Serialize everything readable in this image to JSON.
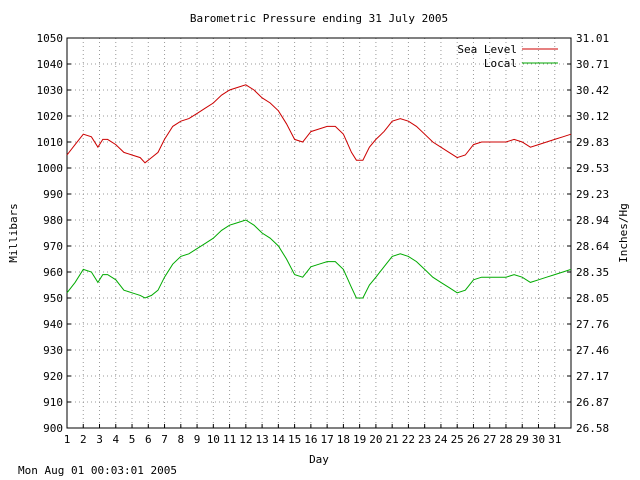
{
  "chart_data": {
    "type": "line",
    "title": "Barometric Pressure ending 31 July 2005",
    "xlabel": "Day",
    "ylabel": "Millibars",
    "ylabel_right": "Inches/Hg",
    "xlim": [
      1,
      32
    ],
    "ylim": [
      900,
      1050
    ],
    "grid": true,
    "legend_position": "top-right",
    "x_ticks": [
      "1",
      "2",
      "3",
      "4",
      "5",
      "6",
      "7",
      "8",
      "9",
      "10",
      "11",
      "12",
      "13",
      "14",
      "15",
      "16",
      "17",
      "18",
      "19",
      "20",
      "21",
      "22",
      "23",
      "24",
      "25",
      "26",
      "27",
      "28",
      "29",
      "30",
      "31"
    ],
    "y_ticks": [
      "900",
      "910",
      "920",
      "930",
      "940",
      "950",
      "960",
      "970",
      "980",
      "990",
      "1000",
      "1010",
      "1020",
      "1030",
      "1040",
      "1050"
    ],
    "y_ticks_right": [
      "26.58",
      "26.87",
      "27.17",
      "27.46",
      "27.76",
      "28.05",
      "28.35",
      "28.64",
      "28.94",
      "29.23",
      "29.53",
      "29.83",
      "30.12",
      "30.42",
      "30.71",
      "31.01"
    ],
    "series": [
      {
        "name": "Sea Level",
        "color": "#cc0000",
        "x": [
          1.0,
          1.5,
          2.0,
          2.5,
          2.9,
          3.2,
          3.5,
          4.0,
          4.5,
          5.0,
          5.5,
          5.8,
          6.2,
          6.6,
          7.0,
          7.5,
          8.0,
          8.5,
          9.0,
          9.5,
          10.0,
          10.5,
          11.0,
          11.5,
          12.0,
          12.5,
          13.0,
          13.5,
          14.0,
          14.5,
          15.0,
          15.5,
          16.0,
          16.5,
          17.0,
          17.5,
          18.0,
          18.5,
          18.8,
          19.2,
          19.6,
          20.0,
          20.5,
          21.0,
          21.5,
          22.0,
          22.5,
          23.0,
          23.5,
          24.0,
          24.5,
          25.0,
          25.5,
          26.0,
          26.5,
          27.0,
          27.5,
          28.0,
          28.5,
          29.0,
          29.5,
          30.0,
          30.5,
          31.0,
          31.5,
          32.0
        ],
        "values": [
          1005,
          1009,
          1013,
          1012,
          1008,
          1011,
          1011,
          1009,
          1006,
          1005,
          1004,
          1002,
          1004,
          1006,
          1011,
          1016,
          1018,
          1019,
          1021,
          1023,
          1025,
          1028,
          1030,
          1031,
          1032,
          1030,
          1027,
          1025,
          1022,
          1017,
          1011,
          1010,
          1014,
          1015,
          1016,
          1016,
          1013,
          1006,
          1003,
          1003,
          1008,
          1011,
          1014,
          1018,
          1019,
          1018,
          1016,
          1013,
          1010,
          1008,
          1006,
          1004,
          1005,
          1009,
          1010,
          1010,
          1010,
          1010,
          1011,
          1010,
          1008,
          1009,
          1010,
          1011,
          1012,
          1013
        ]
      },
      {
        "name": "Local",
        "color": "#00aa00",
        "x": [
          1.0,
          1.5,
          2.0,
          2.5,
          2.9,
          3.2,
          3.5,
          4.0,
          4.5,
          5.0,
          5.5,
          5.8,
          6.2,
          6.6,
          7.0,
          7.5,
          8.0,
          8.5,
          9.0,
          9.5,
          10.0,
          10.5,
          11.0,
          11.5,
          12.0,
          12.5,
          13.0,
          13.5,
          14.0,
          14.5,
          15.0,
          15.5,
          16.0,
          16.5,
          17.0,
          17.5,
          18.0,
          18.5,
          18.8,
          19.2,
          19.6,
          20.0,
          20.5,
          21.0,
          21.5,
          22.0,
          22.5,
          23.0,
          23.5,
          24.0,
          24.5,
          25.0,
          25.5,
          26.0,
          26.5,
          27.0,
          27.5,
          28.0,
          28.5,
          29.0,
          29.5,
          30.0,
          30.5,
          31.0,
          31.5,
          32.0
        ],
        "values": [
          952,
          956,
          961,
          960,
          956,
          959,
          959,
          957,
          953,
          952,
          951,
          950,
          951,
          953,
          958,
          963,
          966,
          967,
          969,
          971,
          973,
          976,
          978,
          979,
          980,
          978,
          975,
          973,
          970,
          965,
          959,
          958,
          962,
          963,
          964,
          964,
          961,
          954,
          950,
          950,
          955,
          958,
          962,
          966,
          967,
          966,
          964,
          961,
          958,
          956,
          954,
          952,
          953,
          957,
          958,
          958,
          958,
          958,
          959,
          958,
          956,
          957,
          958,
          959,
          960,
          961
        ]
      }
    ]
  },
  "footer_timestamp": "Mon Aug 01 00:03:01 2005"
}
